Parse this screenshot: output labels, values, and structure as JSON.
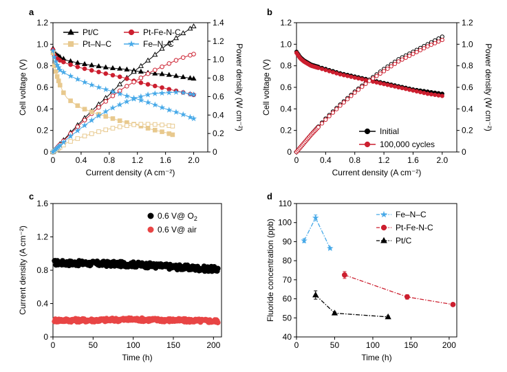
{
  "chart_data": [
    {
      "panel": "a",
      "type": "line",
      "xlabel": "Current density (A cm⁻²)",
      "ylabel": "Cell voltage (V)",
      "y2label": "Power density (W cm⁻²)",
      "xlim": [
        0,
        2.2
      ],
      "ylim": [
        0,
        1.2
      ],
      "y2lim": [
        0,
        1.4
      ],
      "xticks": [
        "0",
        "0.4",
        "0.8",
        "1.2",
        "1.6",
        "2.0"
      ],
      "yticks": [
        "0",
        "0.2",
        "0.4",
        "0.6",
        "0.8",
        "1.0",
        "1.2"
      ],
      "y2ticks": [
        "0",
        "0.2",
        "0.4",
        "0.6",
        "0.8",
        "1.0",
        "1.2",
        "1.4"
      ],
      "legend": [
        "Pt/C",
        "Pt-Fe-N-C",
        "Pt–N–C",
        "Fe–N–C"
      ],
      "series": [
        {
          "name": "Pt/C",
          "color": "#000000",
          "marker": "triangle",
          "x_end": 2.0,
          "voltage": [
            [
              0,
              0.96
            ],
            [
              0.02,
              0.92
            ],
            [
              0.05,
              0.9
            ],
            [
              0.1,
              0.88
            ],
            [
              0.2,
              0.85
            ],
            [
              0.4,
              0.82
            ],
            [
              0.6,
              0.8
            ],
            [
              0.8,
              0.78
            ],
            [
              1.0,
              0.77
            ],
            [
              1.2,
              0.75
            ],
            [
              1.4,
              0.73
            ],
            [
              1.6,
              0.72
            ],
            [
              1.8,
              0.7
            ],
            [
              2.0,
              0.68
            ]
          ],
          "power": [
            [
              0,
              0
            ],
            [
              0.2,
              0.17
            ],
            [
              0.4,
              0.33
            ],
            [
              0.6,
              0.48
            ],
            [
              0.8,
              0.62
            ],
            [
              1.0,
              0.77
            ],
            [
              1.2,
              0.9
            ],
            [
              1.4,
              1.02
            ],
            [
              1.6,
              1.15
            ],
            [
              1.8,
              1.26
            ],
            [
              2.0,
              1.36
            ]
          ]
        },
        {
          "name": "Pt-Fe-N-C",
          "color": "#cc1f2f",
          "marker": "circle",
          "x_end": 2.0,
          "voltage": [
            [
              0,
              0.95
            ],
            [
              0.02,
              0.9
            ],
            [
              0.05,
              0.87
            ],
            [
              0.1,
              0.85
            ],
            [
              0.2,
              0.82
            ],
            [
              0.4,
              0.78
            ],
            [
              0.6,
              0.75
            ],
            [
              0.8,
              0.72
            ],
            [
              1.0,
              0.69
            ],
            [
              1.2,
              0.65
            ],
            [
              1.4,
              0.62
            ],
            [
              1.6,
              0.59
            ],
            [
              1.8,
              0.56
            ],
            [
              2.0,
              0.53
            ]
          ],
          "power": [
            [
              0,
              0
            ],
            [
              0.2,
              0.16
            ],
            [
              0.4,
              0.31
            ],
            [
              0.6,
              0.45
            ],
            [
              0.8,
              0.58
            ],
            [
              1.0,
              0.69
            ],
            [
              1.2,
              0.78
            ],
            [
              1.4,
              0.87
            ],
            [
              1.6,
              0.94
            ],
            [
              1.8,
              1.01
            ],
            [
              2.0,
              1.06
            ]
          ]
        },
        {
          "name": "Pt–N–C",
          "color": "#e8c98e",
          "marker": "square",
          "x_end": 1.7,
          "voltage": [
            [
              0,
              0.92
            ],
            [
              0.02,
              0.8
            ],
            [
              0.05,
              0.72
            ],
            [
              0.1,
              0.62
            ],
            [
              0.15,
              0.55
            ],
            [
              0.2,
              0.5
            ],
            [
              0.3,
              0.45
            ],
            [
              0.4,
              0.41
            ],
            [
              0.6,
              0.36
            ],
            [
              0.8,
              0.32
            ],
            [
              1.0,
              0.28
            ],
            [
              1.2,
              0.25
            ],
            [
              1.4,
              0.21
            ],
            [
              1.6,
              0.18
            ],
            [
              1.7,
              0.16
            ]
          ],
          "power": [
            [
              0,
              0
            ],
            [
              0.2,
              0.1
            ],
            [
              0.4,
              0.16
            ],
            [
              0.6,
              0.21
            ],
            [
              0.8,
              0.25
            ],
            [
              1.0,
              0.28
            ],
            [
              1.2,
              0.3
            ],
            [
              1.4,
              0.3
            ],
            [
              1.6,
              0.29
            ],
            [
              1.7,
              0.28
            ]
          ]
        },
        {
          "name": "Fe–N–C",
          "color": "#47a9e8",
          "marker": "star",
          "x_end": 2.0,
          "voltage": [
            [
              0,
              0.94
            ],
            [
              0.02,
              0.88
            ],
            [
              0.05,
              0.82
            ],
            [
              0.1,
              0.76
            ],
            [
              0.2,
              0.72
            ],
            [
              0.4,
              0.66
            ],
            [
              0.6,
              0.61
            ],
            [
              0.8,
              0.57
            ],
            [
              1.0,
              0.53
            ],
            [
              1.2,
              0.49
            ],
            [
              1.4,
              0.45
            ],
            [
              1.6,
              0.4
            ],
            [
              1.8,
              0.36
            ],
            [
              2.0,
              0.31
            ]
          ],
          "power": [
            [
              0,
              0
            ],
            [
              0.2,
              0.14
            ],
            [
              0.4,
              0.26
            ],
            [
              0.6,
              0.37
            ],
            [
              0.8,
              0.46
            ],
            [
              1.0,
              0.53
            ],
            [
              1.2,
              0.59
            ],
            [
              1.4,
              0.63
            ],
            [
              1.6,
              0.64
            ],
            [
              1.8,
              0.65
            ],
            [
              2.0,
              0.62
            ]
          ]
        }
      ]
    },
    {
      "panel": "b",
      "type": "line",
      "xlabel": "Current density (A cm⁻²)",
      "ylabel": "Cell voltage (V)",
      "y2label": "Power density (W cm⁻²)",
      "xlim": [
        0,
        2.2
      ],
      "ylim": [
        0,
        1.2
      ],
      "y2lim": [
        0,
        1.2
      ],
      "xticks": [
        "0",
        "0.4",
        "0.8",
        "1.2",
        "1.6",
        "2.0"
      ],
      "yticks": [
        "0",
        "0.2",
        "0.4",
        "0.6",
        "0.8",
        "1.0",
        "1.2"
      ],
      "y2ticks": [
        "0",
        "0.2",
        "0.4",
        "0.6",
        "0.8",
        "1.0",
        "1.2"
      ],
      "legend": [
        "Initial",
        "100,000 cycles"
      ],
      "series": [
        {
          "name": "Initial",
          "color": "#000000",
          "voltage": [
            [
              0,
              0.93
            ],
            [
              0.05,
              0.88
            ],
            [
              0.1,
              0.85
            ],
            [
              0.2,
              0.81
            ],
            [
              0.4,
              0.77
            ],
            [
              0.6,
              0.73
            ],
            [
              0.8,
              0.7
            ],
            [
              1.0,
              0.67
            ],
            [
              1.2,
              0.64
            ],
            [
              1.4,
              0.61
            ],
            [
              1.6,
              0.58
            ],
            [
              1.8,
              0.56
            ],
            [
              2.0,
              0.54
            ]
          ],
          "power": [
            [
              0,
              0
            ],
            [
              0.2,
              0.16
            ],
            [
              0.4,
              0.31
            ],
            [
              0.6,
              0.44
            ],
            [
              0.8,
              0.56
            ],
            [
              1.0,
              0.67
            ],
            [
              1.2,
              0.77
            ],
            [
              1.4,
              0.86
            ],
            [
              1.6,
              0.93
            ],
            [
              1.8,
              1.0
            ],
            [
              2.0,
              1.07
            ]
          ]
        },
        {
          "name": "100,000 cycles",
          "color": "#cc1f2f",
          "voltage": [
            [
              0,
              0.92
            ],
            [
              0.05,
              0.87
            ],
            [
              0.1,
              0.84
            ],
            [
              0.2,
              0.8
            ],
            [
              0.4,
              0.76
            ],
            [
              0.6,
              0.72
            ],
            [
              0.8,
              0.69
            ],
            [
              1.0,
              0.66
            ],
            [
              1.2,
              0.63
            ],
            [
              1.4,
              0.6
            ],
            [
              1.6,
              0.57
            ],
            [
              1.8,
              0.54
            ],
            [
              2.0,
              0.52
            ]
          ],
          "power": [
            [
              0,
              0
            ],
            [
              0.2,
              0.16
            ],
            [
              0.4,
              0.3
            ],
            [
              0.6,
              0.43
            ],
            [
              0.8,
              0.55
            ],
            [
              1.0,
              0.66
            ],
            [
              1.2,
              0.75
            ],
            [
              1.4,
              0.84
            ],
            [
              1.6,
              0.91
            ],
            [
              1.8,
              0.98
            ],
            [
              2.0,
              1.04
            ]
          ]
        }
      ]
    },
    {
      "panel": "c",
      "type": "scatter",
      "xlabel": "Time (h)",
      "ylabel": "Current density (A cm⁻²)",
      "xlim": [
        0,
        210
      ],
      "ylim": [
        0,
        1.6
      ],
      "xticks": [
        "0",
        "50",
        "100",
        "150",
        "200"
      ],
      "yticks": [
        "0",
        "0.4",
        "0.8",
        "1.2",
        "1.6"
      ],
      "series": [
        {
          "name": "0.6 V@ O",
          "subscript": "2",
          "color": "#000000",
          "x": [
            0,
            50,
            100,
            150,
            205
          ],
          "values": [
            0.89,
            0.88,
            0.87,
            0.84,
            0.81
          ],
          "noise": 0.03
        },
        {
          "name": "0.6 V@ air",
          "color": "#e84545",
          "x": [
            0,
            50,
            100,
            150,
            205
          ],
          "values": [
            0.2,
            0.2,
            0.21,
            0.2,
            0.19
          ],
          "noise": 0.02
        }
      ]
    },
    {
      "panel": "d",
      "type": "line",
      "xlabel": "Time (h)",
      "ylabel": "Fluoride concentration (ppb)",
      "xlim": [
        0,
        210
      ],
      "ylim": [
        40,
        110
      ],
      "xticks": [
        "0",
        "50",
        "100",
        "150",
        "200"
      ],
      "yticks": [
        "40",
        "50",
        "60",
        "70",
        "80",
        "90",
        "100",
        "110"
      ],
      "series": [
        {
          "name": "Fe–N–C",
          "color": "#47a9e8",
          "marker": "star",
          "x": [
            10,
            25,
            44
          ],
          "values": [
            90.5,
            102.5,
            86.5
          ],
          "err": [
            1,
            1.5,
            0.5
          ]
        },
        {
          "name": "Pt-Fe-N-C",
          "color": "#cc1f2f",
          "marker": "circle",
          "x": [
            63,
            145,
            205
          ],
          "values": [
            72.5,
            61,
            57
          ],
          "err": [
            1.8,
            1.2,
            0.5
          ]
        },
        {
          "name": "Pt/C",
          "color": "#000000",
          "marker": "triangle",
          "x": [
            25,
            50,
            120
          ],
          "values": [
            62,
            52.5,
            50.5
          ],
          "err": [
            2.2,
            0.5,
            0.5
          ]
        }
      ]
    }
  ]
}
